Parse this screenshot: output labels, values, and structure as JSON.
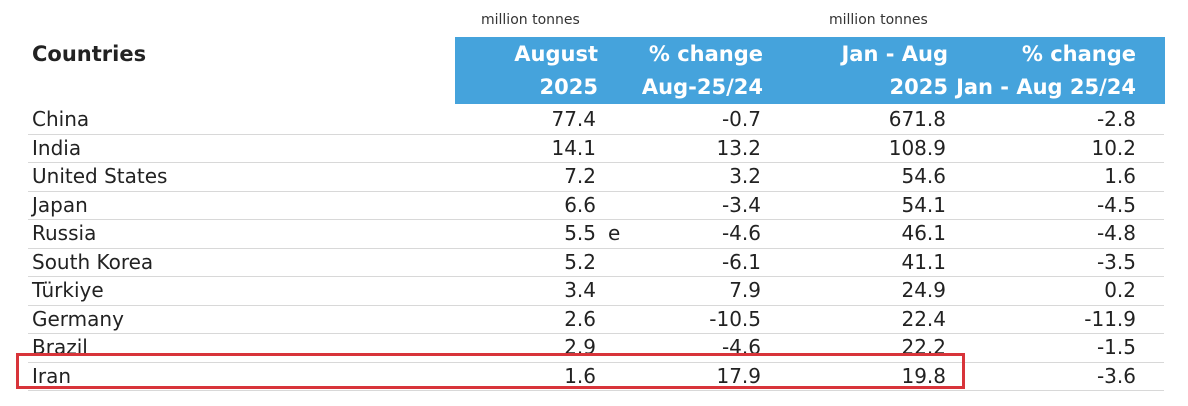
{
  "units": {
    "left": "million tonnes",
    "right": "million tonnes"
  },
  "header": {
    "countries": "Countries",
    "august_line1": "August",
    "august_line2": "2025",
    "pct1_line1": "% change",
    "pct1_line2": "Aug-25/24",
    "jan_line1": "Jan - Aug",
    "jan_line2": "2025",
    "pct2_line1": "% change",
    "pct2_line2": "Jan - Aug 25/24"
  },
  "rows": [
    {
      "country": "China",
      "august": "77.4",
      "flag": "",
      "pct_aug": "-0.7",
      "jan_aug": "671.8",
      "pct_jan_aug": "-2.8"
    },
    {
      "country": "India",
      "august": "14.1",
      "flag": "",
      "pct_aug": "13.2",
      "jan_aug": "108.9",
      "pct_jan_aug": "10.2"
    },
    {
      "country": "United States",
      "august": "7.2",
      "flag": "",
      "pct_aug": "3.2",
      "jan_aug": "54.6",
      "pct_jan_aug": "1.6"
    },
    {
      "country": "Japan",
      "august": "6.6",
      "flag": "",
      "pct_aug": "-3.4",
      "jan_aug": "54.1",
      "pct_jan_aug": "-4.5"
    },
    {
      "country": "Russia",
      "august": "5.5",
      "flag": "e",
      "pct_aug": "-4.6",
      "jan_aug": "46.1",
      "pct_jan_aug": "-4.8"
    },
    {
      "country": "South Korea",
      "august": "5.2",
      "flag": "",
      "pct_aug": "-6.1",
      "jan_aug": "41.1",
      "pct_jan_aug": "-3.5"
    },
    {
      "country": "Türkiye",
      "august": "3.4",
      "flag": "",
      "pct_aug": "7.9",
      "jan_aug": "24.9",
      "pct_jan_aug": "0.2"
    },
    {
      "country": "Germany",
      "august": "2.6",
      "flag": "",
      "pct_aug": "-10.5",
      "jan_aug": "22.4",
      "pct_jan_aug": "-11.9"
    },
    {
      "country": "Brazil",
      "august": "2.9",
      "flag": "",
      "pct_aug": "-4.6",
      "jan_aug": "22.2",
      "pct_jan_aug": "-1.5"
    },
    {
      "country": "Iran",
      "august": "1.6",
      "flag": "",
      "pct_aug": "17.9",
      "jan_aug": "19.8",
      "pct_jan_aug": "-3.6"
    }
  ],
  "colors": {
    "header_background": "#45a3dc",
    "highlight_border": "#d8343a"
  }
}
